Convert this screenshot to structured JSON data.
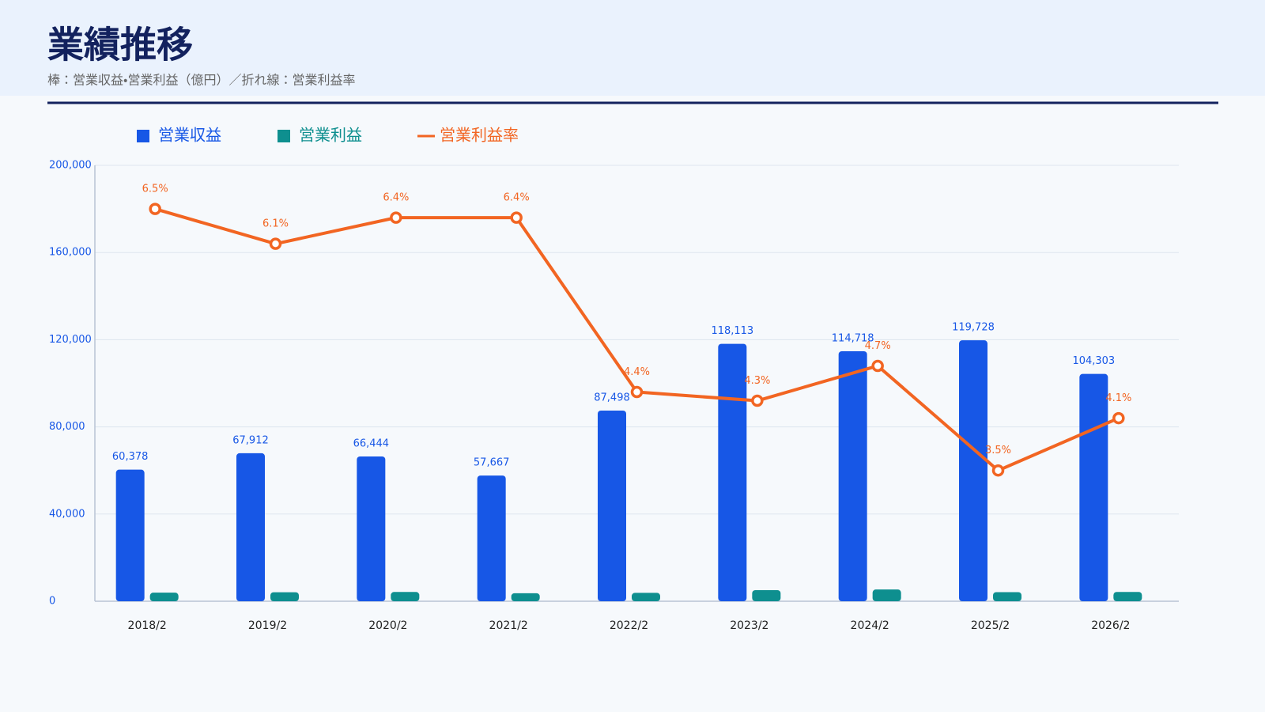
{
  "chart_data": {
    "type": "bar",
    "title": "業績推移",
    "subtitle": "棒：営業収益・営業利益（億円）／折れ線：営業利益率",
    "categories": [
      "2018/2",
      "2019/2",
      "2020/2",
      "2021/2",
      "2022/2",
      "2023/2",
      "2024/2",
      "2025/2",
      "2026/2"
    ],
    "series": [
      {
        "name": "営業収益",
        "color": "#1757e6",
        "values": [
          60378,
          67912,
          66444,
          57667,
          87498,
          118113,
          114718,
          119728,
          104303
        ],
        "value_labels": [
          "60,378",
          "67,912",
          "66,444",
          "57,667",
          "87,498",
          "118,113",
          "114,718",
          "119,728",
          "104,303"
        ]
      },
      {
        "name": "営業利益",
        "color": "#0e8f8f",
        "values": [
          3925,
          4143,
          4252,
          3691,
          3850,
          5079,
          5392,
          4190,
          4276
        ]
      },
      {
        "name": "営業利益率",
        "type": "line",
        "axis": "y2",
        "color": "#f26522",
        "values": [
          6.5,
          6.1,
          6.4,
          6.4,
          4.4,
          4.3,
          4.7,
          3.5,
          4.1
        ],
        "value_labels": [
          "6.5%",
          "6.1%",
          "6.4%",
          "6.4%",
          "4.4%",
          "4.3%",
          "4.7%",
          "3.5%",
          "4.1%"
        ]
      }
    ],
    "ylim": [
      0,
      200000
    ],
    "yticks": [
      0,
      {
        "value": 40000,
        "label": "40,000"
      },
      {
        "value": 80000,
        "label": "80,000"
      },
      {
        "value": 120000,
        "label": "120,000"
      },
      {
        "value": 160000,
        "label": "160,000"
      },
      {
        "value": 200000,
        "label": "200,000"
      }
    ],
    "y2lim": [
      2,
      7
    ],
    "grid": true,
    "legend": "top-left"
  }
}
